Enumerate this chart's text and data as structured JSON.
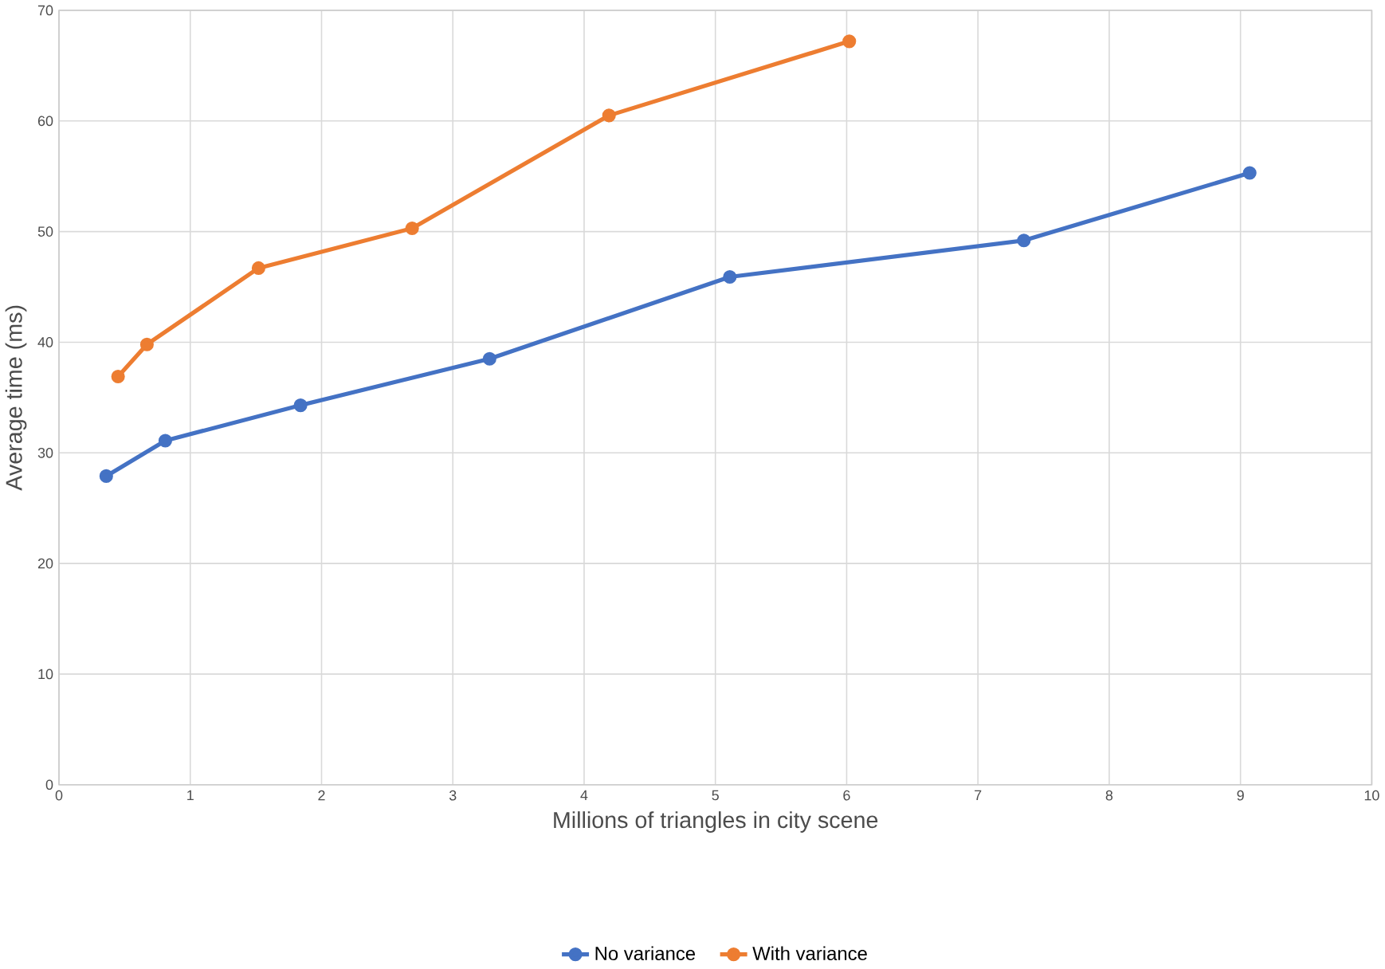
{
  "chart_data": {
    "type": "line",
    "xlabel": "Millions of triangles in city scene",
    "ylabel": "Average time  (ms)",
    "xlim": [
      0,
      10
    ],
    "xticks": [
      0,
      1,
      2,
      3,
      4,
      5,
      6,
      7,
      8,
      9,
      10
    ],
    "ylim": [
      0,
      70
    ],
    "yticks": [
      0,
      10,
      20,
      30,
      40,
      50,
      60,
      70
    ],
    "grid": true,
    "legend": "bottom",
    "marker": "circle",
    "line_style": "solid",
    "series": [
      {
        "name": "No variance",
        "color": "#4472c4",
        "x": [
          0.36,
          0.81,
          1.84,
          3.28,
          5.11,
          7.35,
          9.07
        ],
        "values": [
          27.9,
          31.1,
          34.3,
          38.5,
          45.9,
          49.2,
          55.3
        ]
      },
      {
        "name": "With variance",
        "color": "#ed7d31",
        "x": [
          0.45,
          0.67,
          1.52,
          2.69,
          4.19,
          6.02
        ],
        "values": [
          36.9,
          39.8,
          46.7,
          50.3,
          60.5,
          67.2
        ]
      }
    ]
  }
}
